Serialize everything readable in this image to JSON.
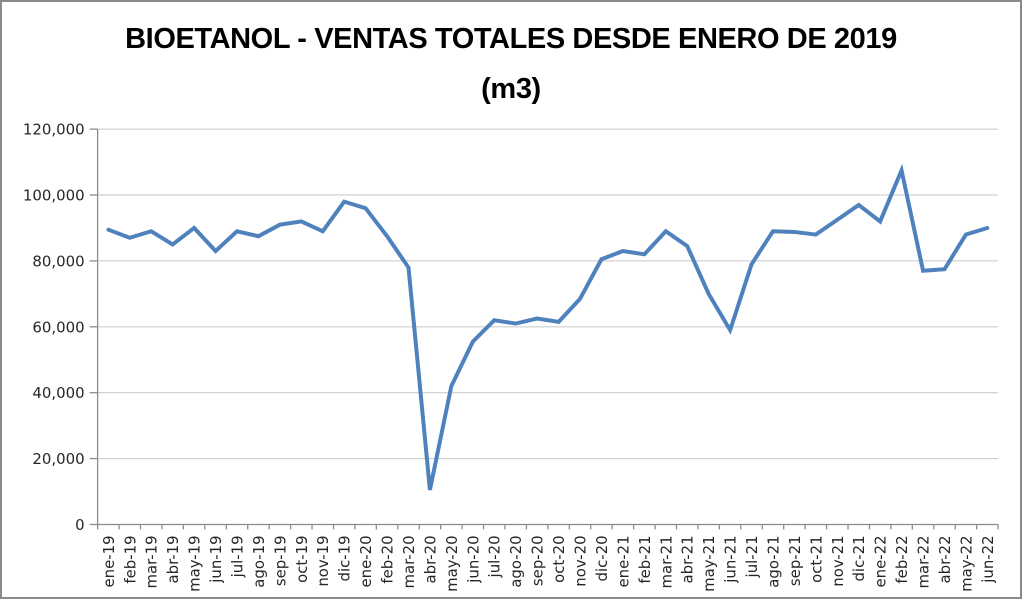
{
  "window": {
    "background": "#FFFFFF",
    "border_color": "#8A8A8A"
  },
  "chart_data": {
    "type": "line",
    "title": "BIOETANOL - VENTAS TOTALES DESDE ENERO DE 2019",
    "subtitle": "(m3)",
    "categories": [
      "ene-19",
      "feb-19",
      "mar-19",
      "abr-19",
      "may-19",
      "jun-19",
      "jul-19",
      "ago-19",
      "sep-19",
      "oct-19",
      "nov-19",
      "dic-19",
      "ene-20",
      "feb-20",
      "mar-20",
      "abr-20",
      "may-20",
      "jun-20",
      "jul-20",
      "ago-20",
      "sep-20",
      "oct-20",
      "nov-20",
      "dic-20",
      "ene-21",
      "feb-21",
      "mar-21",
      "abr-21",
      "may-21",
      "jun-21",
      "jul-21",
      "ago-21",
      "sep-21",
      "oct-21",
      "nov-21",
      "dic-21",
      "ene-22",
      "feb-22",
      "mar-22",
      "abr-22",
      "may-22",
      "jun-22"
    ],
    "values": [
      89500,
      87000,
      89000,
      85000,
      90000,
      83000,
      89000,
      87500,
      91000,
      92000,
      89000,
      98000,
      96000,
      87500,
      78000,
      10500,
      42000,
      55500,
      62000,
      61000,
      62500,
      61500,
      68500,
      80500,
      83000,
      82000,
      89000,
      84500,
      70000,
      59000,
      79000,
      89000,
      88800,
      88000,
      92500,
      97000,
      92000,
      107500,
      77000,
      77500,
      88000,
      90000
    ],
    "xlabel": "",
    "ylabel": "",
    "ylim": [
      0,
      120000
    ],
    "ytick_step": 20000,
    "ytick_labels": [
      "0",
      "20,000",
      "40,000",
      "60,000",
      "80,000",
      "100,000",
      "120,000"
    ],
    "grid": true,
    "legend_position": "none",
    "colors": {
      "line": "#4F81BD",
      "gridline": "#C6C6C6",
      "axis": "#8C8C8C",
      "tick_text": "#262626",
      "title_text": "#000000"
    }
  }
}
